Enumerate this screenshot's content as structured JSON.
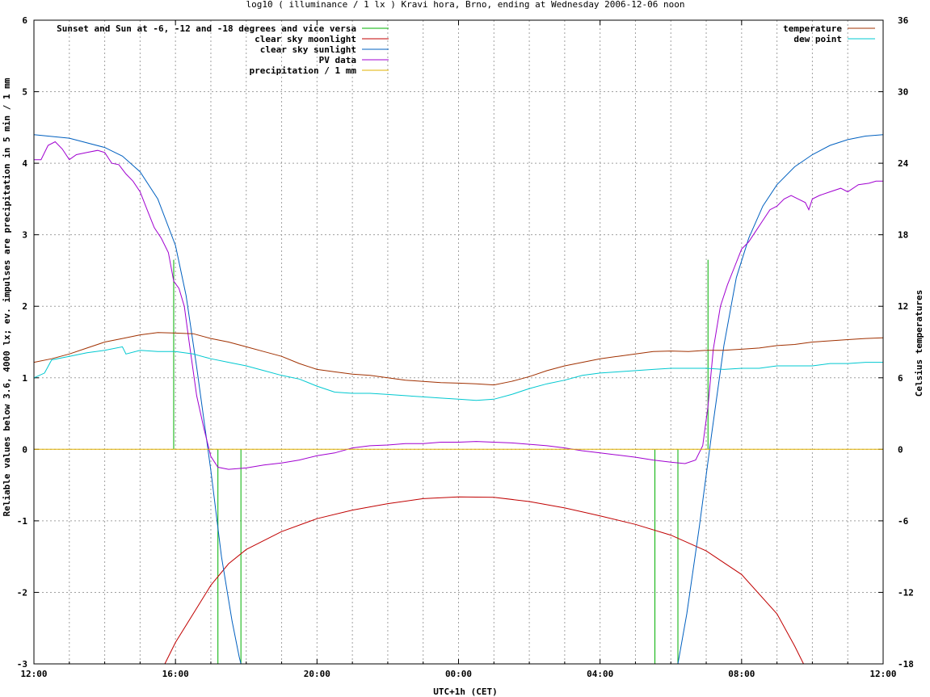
{
  "chart_data": {
    "type": "line",
    "title": "log10 ( illuminance / 1 lx ) Kravi hora, Brno, ending at Wednesday 2006-12-06 noon",
    "xlabel": "UTC+1h (CET)",
    "ylabel": "Reliable values below 3.6, 4000 lx; ev. impulses are precipitation in 5 min / 1 mm",
    "y2label": "Celsius temperatures",
    "xlim": [
      0,
      24
    ],
    "ylim": [
      -3,
      6
    ],
    "y2lim": [
      -18,
      36
    ],
    "x_ticks": [
      {
        "x": 0,
        "label": "12:00"
      },
      {
        "x": 4,
        "label": "16:00"
      },
      {
        "x": 8,
        "label": "20:00"
      },
      {
        "x": 12,
        "label": "00:00"
      },
      {
        "x": 16,
        "label": "04:00"
      },
      {
        "x": 20,
        "label": "08:00"
      },
      {
        "x": 24,
        "label": "12:00"
      }
    ],
    "y_ticks": [
      "-3",
      "-2",
      "-1",
      "0",
      "1",
      "2",
      "3",
      "4",
      "5",
      "6"
    ],
    "y2_ticks": [
      "-18",
      "-12",
      "-6",
      "0",
      "6",
      "12",
      "18",
      "24",
      "30",
      "36"
    ],
    "grid": true,
    "legend_left": "top-left",
    "legend_right": "top-right",
    "series": [
      {
        "name": "Sunset and Sun at -6, -12 and -18 degrees and vice versa",
        "color": "#00b000",
        "kind": "impulses",
        "points": [
          [
            3.95,
            2.65
          ],
          [
            5.2,
            -3
          ],
          [
            5.85,
            -3
          ],
          [
            17.55,
            -3
          ],
          [
            18.2,
            -3
          ],
          [
            19.05,
            2.65
          ]
        ]
      },
      {
        "name": "clear sky moonlight",
        "color": "#c00000",
        "kind": "line",
        "points": [
          [
            3.7,
            -3
          ],
          [
            4.0,
            -2.7
          ],
          [
            4.5,
            -2.3
          ],
          [
            5.0,
            -1.9
          ],
          [
            5.5,
            -1.6
          ],
          [
            6.0,
            -1.4
          ],
          [
            7.0,
            -1.15
          ],
          [
            8.0,
            -0.97
          ],
          [
            9.0,
            -0.85
          ],
          [
            10.0,
            -0.76
          ],
          [
            11.0,
            -0.69
          ],
          [
            12.0,
            -0.665
          ],
          [
            13.0,
            -0.67
          ],
          [
            14.0,
            -0.73
          ],
          [
            15.0,
            -0.82
          ],
          [
            16.0,
            -0.93
          ],
          [
            17.0,
            -1.05
          ],
          [
            18.0,
            -1.2
          ],
          [
            19.0,
            -1.42
          ],
          [
            20.0,
            -1.75
          ],
          [
            21.0,
            -2.3
          ],
          [
            21.5,
            -2.75
          ],
          [
            21.75,
            -3
          ]
        ]
      },
      {
        "name": "clear sky sunlight",
        "color": "#0060c0",
        "kind": "line",
        "points": [
          [
            0,
            4.4
          ],
          [
            1,
            4.35
          ],
          [
            2,
            4.22
          ],
          [
            2.5,
            4.1
          ],
          [
            3.0,
            3.88
          ],
          [
            3.5,
            3.5
          ],
          [
            4.0,
            2.85
          ],
          [
            4.3,
            2.15
          ],
          [
            4.6,
            1.15
          ],
          [
            5.0,
            -0.3
          ],
          [
            5.3,
            -1.5
          ],
          [
            5.6,
            -2.4
          ],
          [
            5.8,
            -2.9
          ],
          [
            5.85,
            -3
          ],
          [
            18.2,
            -3
          ],
          [
            18.45,
            -2.3
          ],
          [
            18.8,
            -1.1
          ],
          [
            19.15,
            0.2
          ],
          [
            19.5,
            1.45
          ],
          [
            19.85,
            2.4
          ],
          [
            20.2,
            2.95
          ],
          [
            20.6,
            3.4
          ],
          [
            21.0,
            3.7
          ],
          [
            21.5,
            3.95
          ],
          [
            22.0,
            4.12
          ],
          [
            22.5,
            4.25
          ],
          [
            23.0,
            4.33
          ],
          [
            23.5,
            4.38
          ],
          [
            24,
            4.4
          ]
        ]
      },
      {
        "name": "PV data",
        "color": "#a000d0",
        "kind": "line",
        "points": [
          [
            0,
            4.05
          ],
          [
            0.2,
            4.05
          ],
          [
            0.4,
            4.25
          ],
          [
            0.6,
            4.3
          ],
          [
            0.8,
            4.2
          ],
          [
            1.0,
            4.05
          ],
          [
            1.2,
            4.12
          ],
          [
            1.5,
            4.15
          ],
          [
            1.8,
            4.18
          ],
          [
            2.0,
            4.15
          ],
          [
            2.2,
            4.0
          ],
          [
            2.4,
            3.98
          ],
          [
            2.6,
            3.85
          ],
          [
            2.8,
            3.75
          ],
          [
            3.0,
            3.6
          ],
          [
            3.2,
            3.35
          ],
          [
            3.4,
            3.1
          ],
          [
            3.6,
            2.95
          ],
          [
            3.8,
            2.75
          ],
          [
            3.95,
            2.35
          ],
          [
            4.1,
            2.25
          ],
          [
            4.25,
            2.0
          ],
          [
            4.4,
            1.45
          ],
          [
            4.6,
            0.75
          ],
          [
            4.8,
            0.3
          ],
          [
            5.0,
            -0.1
          ],
          [
            5.2,
            -0.25
          ],
          [
            5.5,
            -0.28
          ],
          [
            6.0,
            -0.26
          ],
          [
            6.5,
            -0.22
          ],
          [
            7.0,
            -0.19
          ],
          [
            7.5,
            -0.15
          ],
          [
            8.0,
            -0.09
          ],
          [
            8.5,
            -0.05
          ],
          [
            9.0,
            0.02
          ],
          [
            9.5,
            0.05
          ],
          [
            10.0,
            0.06
          ],
          [
            10.5,
            0.08
          ],
          [
            11.0,
            0.08
          ],
          [
            11.5,
            0.1
          ],
          [
            12.0,
            0.1
          ],
          [
            12.5,
            0.11
          ],
          [
            13.0,
            0.1
          ],
          [
            13.5,
            0.09
          ],
          [
            14.0,
            0.07
          ],
          [
            14.5,
            0.05
          ],
          [
            15.0,
            0.02
          ],
          [
            15.5,
            -0.02
          ],
          [
            16.0,
            -0.05
          ],
          [
            16.5,
            -0.08
          ],
          [
            17.0,
            -0.11
          ],
          [
            17.5,
            -0.15
          ],
          [
            18.0,
            -0.18
          ],
          [
            18.4,
            -0.2
          ],
          [
            18.7,
            -0.15
          ],
          [
            18.9,
            0.05
          ],
          [
            19.05,
            0.6
          ],
          [
            19.2,
            1.4
          ],
          [
            19.4,
            2.0
          ],
          [
            19.6,
            2.3
          ],
          [
            19.8,
            2.55
          ],
          [
            20.0,
            2.8
          ],
          [
            20.2,
            2.9
          ],
          [
            20.4,
            3.05
          ],
          [
            20.6,
            3.2
          ],
          [
            20.8,
            3.35
          ],
          [
            21.0,
            3.4
          ],
          [
            21.2,
            3.5
          ],
          [
            21.4,
            3.55
          ],
          [
            21.6,
            3.5
          ],
          [
            21.8,
            3.45
          ],
          [
            21.9,
            3.35
          ],
          [
            22.0,
            3.5
          ],
          [
            22.2,
            3.55
          ],
          [
            22.5,
            3.6
          ],
          [
            22.8,
            3.65
          ],
          [
            23.0,
            3.6
          ],
          [
            23.3,
            3.7
          ],
          [
            23.6,
            3.72
          ],
          [
            23.8,
            3.75
          ],
          [
            24,
            3.75
          ]
        ]
      },
      {
        "name": "precipitation / 1 mm",
        "color": "#e0b000",
        "kind": "line",
        "points": [
          [
            0,
            0
          ],
          [
            24,
            0
          ]
        ]
      },
      {
        "name": "temperature",
        "color": "#a03000",
        "kind": "line",
        "axis": "y2",
        "points": [
          [
            0,
            7.3
          ],
          [
            0.5,
            7.6
          ],
          [
            1.0,
            8.0
          ],
          [
            1.5,
            8.5
          ],
          [
            2.0,
            9.0
          ],
          [
            2.5,
            9.3
          ],
          [
            3.0,
            9.6
          ],
          [
            3.5,
            9.8
          ],
          [
            4.0,
            9.75
          ],
          [
            4.5,
            9.7
          ],
          [
            5.0,
            9.3
          ],
          [
            5.5,
            9.0
          ],
          [
            6.0,
            8.6
          ],
          [
            6.5,
            8.2
          ],
          [
            7.0,
            7.8
          ],
          [
            7.5,
            7.2
          ],
          [
            8.0,
            6.7
          ],
          [
            8.5,
            6.5
          ],
          [
            9.0,
            6.3
          ],
          [
            9.5,
            6.2
          ],
          [
            10.0,
            6.0
          ],
          [
            10.5,
            5.8
          ],
          [
            11.0,
            5.7
          ],
          [
            11.5,
            5.6
          ],
          [
            12.0,
            5.55
          ],
          [
            12.5,
            5.5
          ],
          [
            13.0,
            5.4
          ],
          [
            13.5,
            5.7
          ],
          [
            14.0,
            6.1
          ],
          [
            14.5,
            6.6
          ],
          [
            15.0,
            7.0
          ],
          [
            15.5,
            7.3
          ],
          [
            16.0,
            7.6
          ],
          [
            16.5,
            7.8
          ],
          [
            17.0,
            8.0
          ],
          [
            17.5,
            8.2
          ],
          [
            18.0,
            8.25
          ],
          [
            18.5,
            8.2
          ],
          [
            19.0,
            8.3
          ],
          [
            19.5,
            8.3
          ],
          [
            20.0,
            8.4
          ],
          [
            20.5,
            8.5
          ],
          [
            21.0,
            8.7
          ],
          [
            21.5,
            8.8
          ],
          [
            22.0,
            9.0
          ],
          [
            22.5,
            9.1
          ],
          [
            23.0,
            9.2
          ],
          [
            23.5,
            9.3
          ],
          [
            24,
            9.35
          ]
        ]
      },
      {
        "name": "dew point",
        "color": "#00c8d0",
        "kind": "line",
        "axis": "y2",
        "points": [
          [
            0,
            6.0
          ],
          [
            0.3,
            6.4
          ],
          [
            0.5,
            7.5
          ],
          [
            1.0,
            7.8
          ],
          [
            1.5,
            8.1
          ],
          [
            2.0,
            8.3
          ],
          [
            2.5,
            8.6
          ],
          [
            2.6,
            8.0
          ],
          [
            3.0,
            8.3
          ],
          [
            3.5,
            8.2
          ],
          [
            4.0,
            8.2
          ],
          [
            4.5,
            8.0
          ],
          [
            5.0,
            7.6
          ],
          [
            5.5,
            7.3
          ],
          [
            6.0,
            7.0
          ],
          [
            6.5,
            6.6
          ],
          [
            7.0,
            6.2
          ],
          [
            7.5,
            5.9
          ],
          [
            8.0,
            5.3
          ],
          [
            8.5,
            4.8
          ],
          [
            9.0,
            4.7
          ],
          [
            9.5,
            4.7
          ],
          [
            10.0,
            4.6
          ],
          [
            10.5,
            4.5
          ],
          [
            11.0,
            4.4
          ],
          [
            11.5,
            4.3
          ],
          [
            12.0,
            4.2
          ],
          [
            12.5,
            4.1
          ],
          [
            13.0,
            4.2
          ],
          [
            13.5,
            4.6
          ],
          [
            14.0,
            5.1
          ],
          [
            14.5,
            5.5
          ],
          [
            15.0,
            5.8
          ],
          [
            15.5,
            6.2
          ],
          [
            16.0,
            6.4
          ],
          [
            16.5,
            6.5
          ],
          [
            17.0,
            6.6
          ],
          [
            17.5,
            6.7
          ],
          [
            18.0,
            6.8
          ],
          [
            18.5,
            6.8
          ],
          [
            19.0,
            6.8
          ],
          [
            19.5,
            6.7
          ],
          [
            20.0,
            6.8
          ],
          [
            20.5,
            6.8
          ],
          [
            21.0,
            7.0
          ],
          [
            21.5,
            7.0
          ],
          [
            22.0,
            7.0
          ],
          [
            22.5,
            7.2
          ],
          [
            23.0,
            7.2
          ],
          [
            23.5,
            7.3
          ],
          [
            24,
            7.3
          ]
        ]
      }
    ]
  }
}
